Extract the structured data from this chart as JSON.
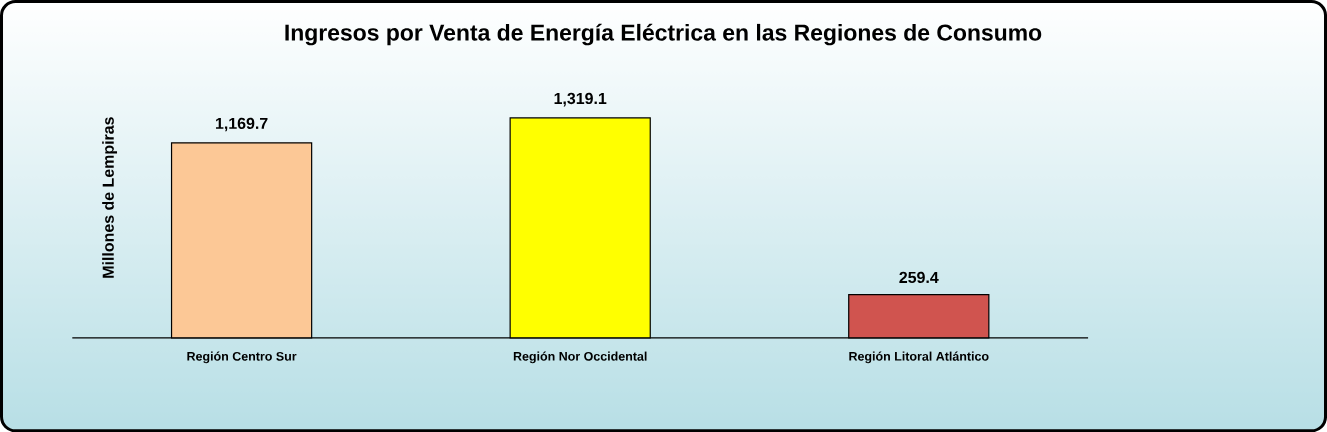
{
  "chart_data": {
    "type": "bar",
    "title": "Ingresos por Venta de Energía Eléctrica en las Regiones de Consumo",
    "ylabel": "Millones de  Lempiras",
    "categories": [
      "Región Centro Sur",
      "Región Nor Occidental",
      "Región Litoral  Atlántico"
    ],
    "values": [
      1169.7,
      1319.1,
      259.4
    ],
    "colors": [
      "#fcc896",
      "#ffff00",
      "#d0544f"
    ],
    "value_labels": [
      "1,169.7",
      "1,319.1",
      "259.4"
    ]
  }
}
